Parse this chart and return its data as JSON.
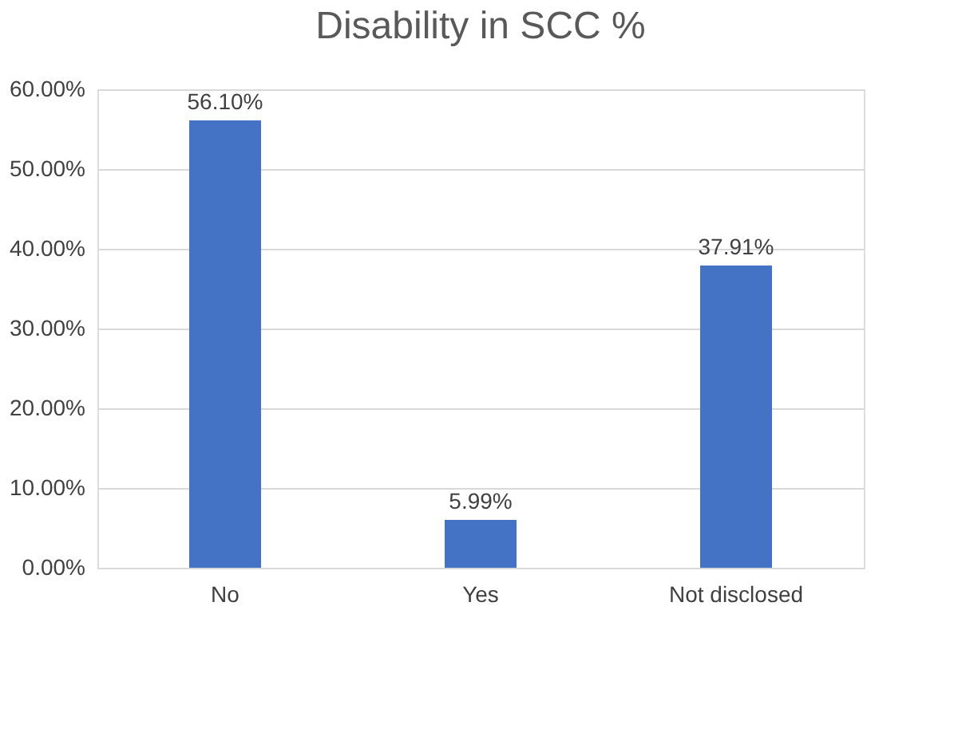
{
  "chart_data": {
    "type": "bar",
    "title": "Disability in SCC %",
    "categories": [
      "No",
      "Yes",
      "Not disclosed"
    ],
    "values": [
      56.1,
      5.99,
      37.91
    ],
    "value_labels": [
      "56.10%",
      "5.99%",
      "37.91%"
    ],
    "color": "#4472c4",
    "ylim": [
      0,
      60
    ],
    "yticks": [
      {
        "value": 0,
        "label": "0.00%"
      },
      {
        "value": 10,
        "label": "10.00%"
      },
      {
        "value": 20,
        "label": "20.00%"
      },
      {
        "value": 30,
        "label": "30.00%"
      },
      {
        "value": 40,
        "label": "40.00%"
      },
      {
        "value": 50,
        "label": "50.00%"
      },
      {
        "value": 60,
        "label": "60.00%"
      }
    ],
    "grid": "y"
  }
}
